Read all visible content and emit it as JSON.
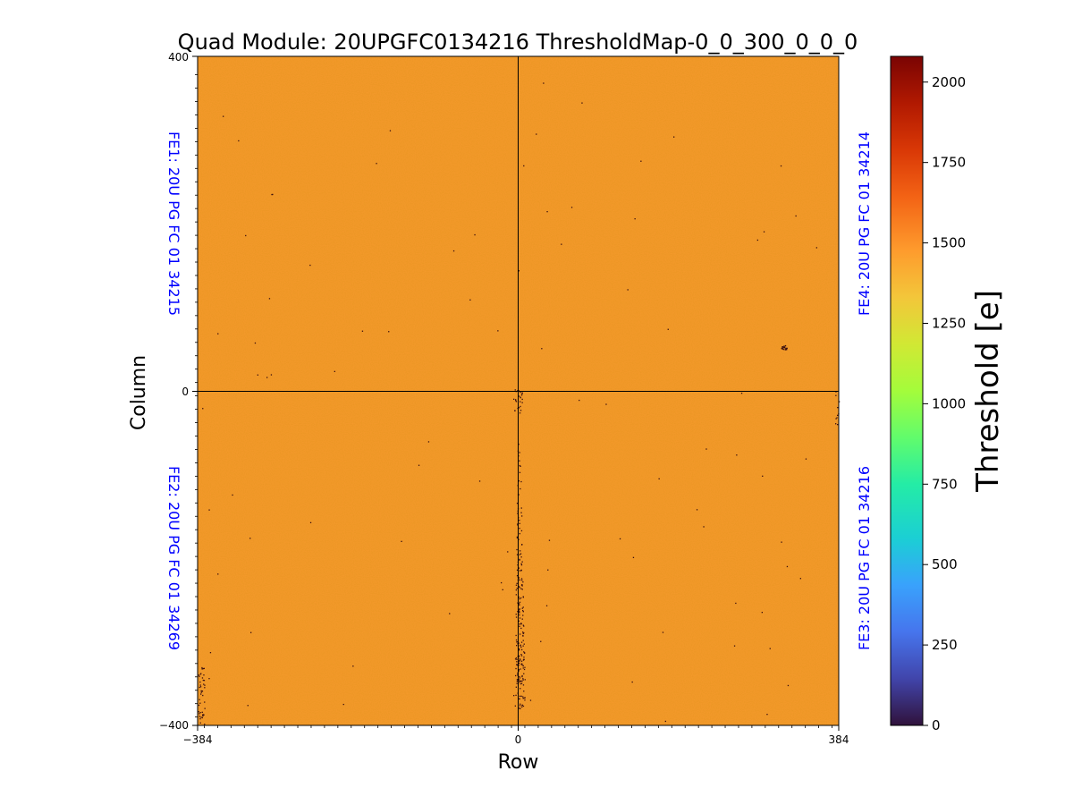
{
  "chart_data": {
    "type": "heatmap",
    "title": "Quad Module: 20UPGFC0134216 ThresholdMap-0_0_300_0_0_0",
    "xlabel": "Row",
    "ylabel": "Column",
    "xlim": [
      -384,
      384
    ],
    "ylim": [
      -400,
      400
    ],
    "x_ticks": [
      "−384",
      "0",
      "384"
    ],
    "y_ticks": [
      "400",
      "0",
      "−400"
    ],
    "x_tick_values": [
      -384,
      0,
      384
    ],
    "y_tick_values": [
      400,
      0,
      -400
    ],
    "dividers": {
      "x": 0,
      "y": 0
    },
    "dominant_value": 1500,
    "quadrant_labels": [
      {
        "text": "FE1: 20U PG FC 01 34215",
        "position": "top-left",
        "color": "#0000ff"
      },
      {
        "text": "FE2: 20U PG FC 01 34269",
        "position": "bottom-left",
        "color": "#0000ff"
      },
      {
        "text": "FE3: 20U PG FC 01 34216",
        "position": "bottom-right",
        "color": "#0000ff"
      },
      {
        "text": "FE4: 20U PG FC 01 34214",
        "position": "top-right",
        "color": "#0000ff"
      }
    ],
    "colorbar": {
      "label": "Threshold [e]",
      "colormap": "turbo",
      "range": [
        0,
        2080
      ],
      "ticks": [
        "0",
        "250",
        "500",
        "750",
        "1000",
        "1250",
        "1500",
        "1750",
        "2000"
      ],
      "tick_values": [
        0,
        250,
        500,
        750,
        1000,
        1250,
        1500,
        1750,
        2000
      ]
    },
    "colors": {
      "map_fill": "#f79a2e",
      "low_pixels": "#3b0f0f",
      "frame": "#000000"
    }
  }
}
